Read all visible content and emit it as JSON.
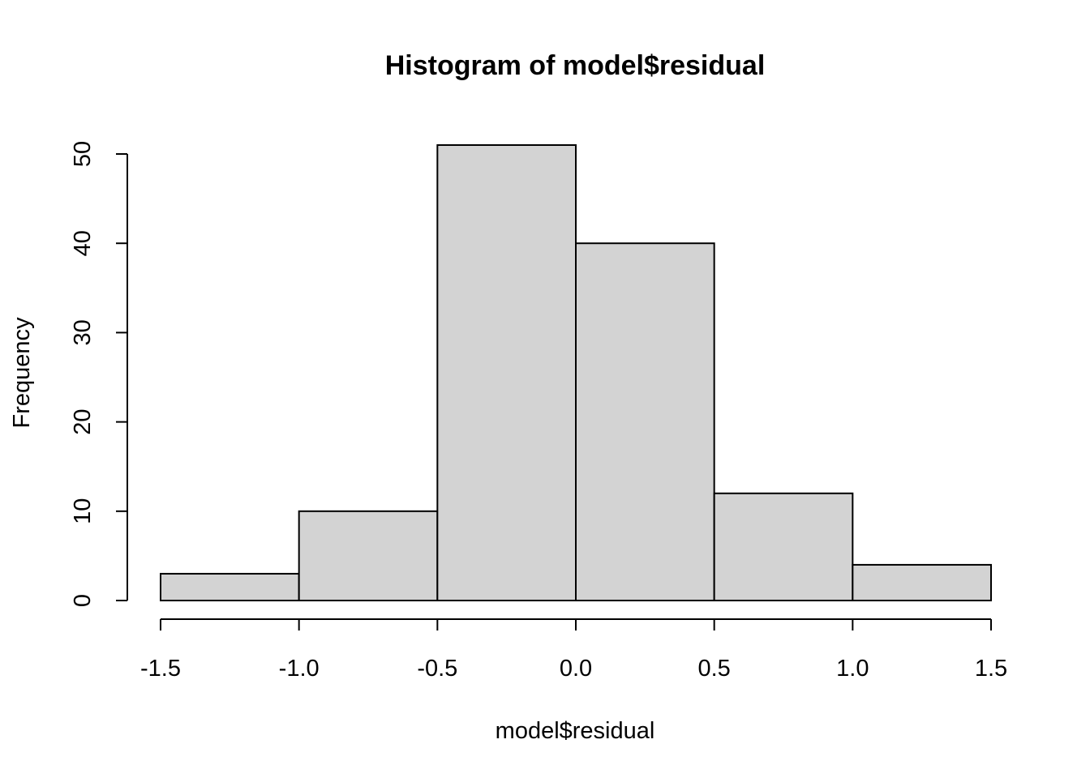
{
  "chart_data": {
    "type": "bar",
    "title": "Histogram of model$residual",
    "xlabel": "model$residual",
    "ylabel": "Frequency",
    "bins": [
      {
        "start": -1.5,
        "end": -1.0,
        "count": 3
      },
      {
        "start": -1.0,
        "end": -0.5,
        "count": 10
      },
      {
        "start": -0.5,
        "end": 0.0,
        "count": 51
      },
      {
        "start": 0.0,
        "end": 0.5,
        "count": 40
      },
      {
        "start": 0.5,
        "end": 1.0,
        "count": 12
      },
      {
        "start": 1.0,
        "end": 1.5,
        "count": 4
      }
    ],
    "x_ticks": [
      -1.5,
      -1.0,
      -0.5,
      0.0,
      0.5,
      1.0,
      1.5
    ],
    "x_tick_labels": [
      "-1.5",
      "-1.0",
      "-0.5",
      "0.0",
      "0.5",
      "1.0",
      "1.5"
    ],
    "y_ticks": [
      0,
      10,
      20,
      30,
      40,
      50
    ],
    "y_tick_labels": [
      "0",
      "10",
      "20",
      "30",
      "40",
      "50"
    ],
    "xlim": [
      -1.5,
      1.5
    ],
    "ylim": [
      0,
      51
    ],
    "grid": false,
    "bar_fill": "#d3d3d3",
    "bar_stroke": "#000000"
  }
}
